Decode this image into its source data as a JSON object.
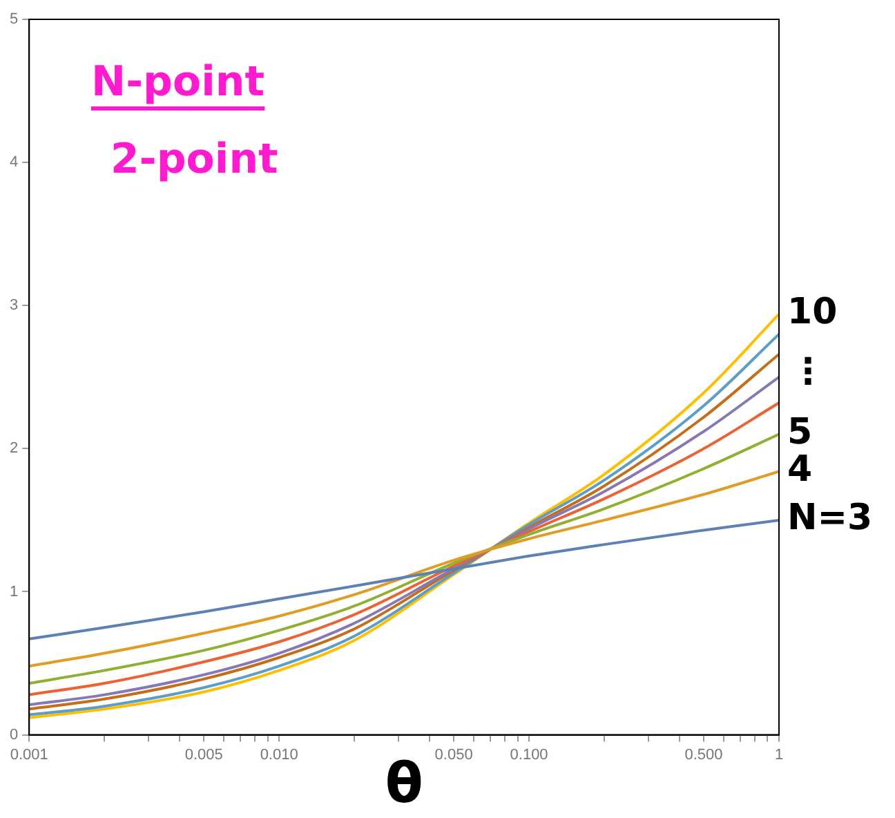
{
  "chart_data": {
    "type": "line",
    "title": "N-point",
    "subtitle": "2-point",
    "xlabel": "θ",
    "log": "x",
    "x": [
      0.001,
      0.002,
      0.005,
      0.01,
      0.02,
      0.05,
      0.1,
      0.2,
      0.5,
      1
    ],
    "series": [
      {
        "name": "N=3",
        "color": "#5e81b5",
        "values": [
          0.67,
          0.75,
          0.86,
          0.95,
          1.04,
          1.16,
          1.25,
          1.33,
          1.43,
          1.5
        ]
      },
      {
        "name": "4",
        "color": "#e19c24",
        "values": [
          0.48,
          0.57,
          0.71,
          0.83,
          0.98,
          1.22,
          1.37,
          1.5,
          1.68,
          1.84
        ]
      },
      {
        "name": "5",
        "color": "#8fb032",
        "values": [
          0.36,
          0.45,
          0.59,
          0.73,
          0.9,
          1.2,
          1.4,
          1.58,
          1.86,
          2.1
        ]
      },
      {
        "color": "#eb6235",
        "values": [
          0.28,
          0.36,
          0.51,
          0.65,
          0.84,
          1.18,
          1.42,
          1.65,
          2.0,
          2.32
        ]
      },
      {
        "color": "#8778b3",
        "values": [
          0.21,
          0.28,
          0.42,
          0.57,
          0.78,
          1.16,
          1.44,
          1.7,
          2.12,
          2.5
        ]
      },
      {
        "color": "#c56e1a",
        "values": [
          0.18,
          0.25,
          0.39,
          0.54,
          0.74,
          1.15,
          1.45,
          1.74,
          2.22,
          2.66
        ]
      },
      {
        "color": "#5d9ec7",
        "values": [
          0.14,
          0.2,
          0.33,
          0.48,
          0.69,
          1.13,
          1.47,
          1.78,
          2.3,
          2.8
        ]
      },
      {
        "name": "10",
        "color": "#ffbf00",
        "values": [
          0.12,
          0.18,
          0.3,
          0.45,
          0.66,
          1.12,
          1.48,
          1.82,
          2.39,
          2.94
        ]
      }
    ],
    "annotations": [
      "⋮"
    ],
    "xlim": [
      0.001,
      1
    ],
    "xticks": [
      0.001,
      {
        "value": 0.002,
        "label": null
      },
      {
        "value": 0.003,
        "label": null
      },
      {
        "value": 0.004,
        "label": null
      },
      0.005,
      {
        "value": 0.006,
        "label": null
      },
      {
        "value": 0.007,
        "label": null
      },
      {
        "value": 0.008,
        "label": null
      },
      {
        "value": 0.009,
        "label": null
      },
      {
        "value": 0.01,
        "label": "0.010"
      },
      {
        "value": 0.02,
        "label": null
      },
      {
        "value": 0.03,
        "label": null
      },
      {
        "value": 0.04,
        "label": null
      },
      {
        "value": 0.05,
        "label": "0.050"
      },
      {
        "value": 0.06,
        "label": null
      },
      {
        "value": 0.07,
        "label": null
      },
      {
        "value": 0.08,
        "label": null
      },
      {
        "value": 0.09,
        "label": null
      },
      {
        "value": 0.1,
        "label": "0.100"
      },
      {
        "value": 0.2,
        "label": null
      },
      {
        "value": 0.3,
        "label": null
      },
      {
        "value": 0.4,
        "label": null
      },
      {
        "value": 0.5,
        "label": "0.500"
      },
      {
        "value": 0.6,
        "label": null
      },
      {
        "value": 0.7,
        "label": null
      },
      {
        "value": 0.8,
        "label": null
      },
      {
        "value": 0.9,
        "label": null
      },
      1
    ],
    "ylim": [
      0,
      5
    ],
    "yticks": [
      0,
      1,
      2,
      3,
      4,
      5
    ],
    "grid": false,
    "legend": false,
    "marker": "none",
    "line_style": "solid"
  }
}
